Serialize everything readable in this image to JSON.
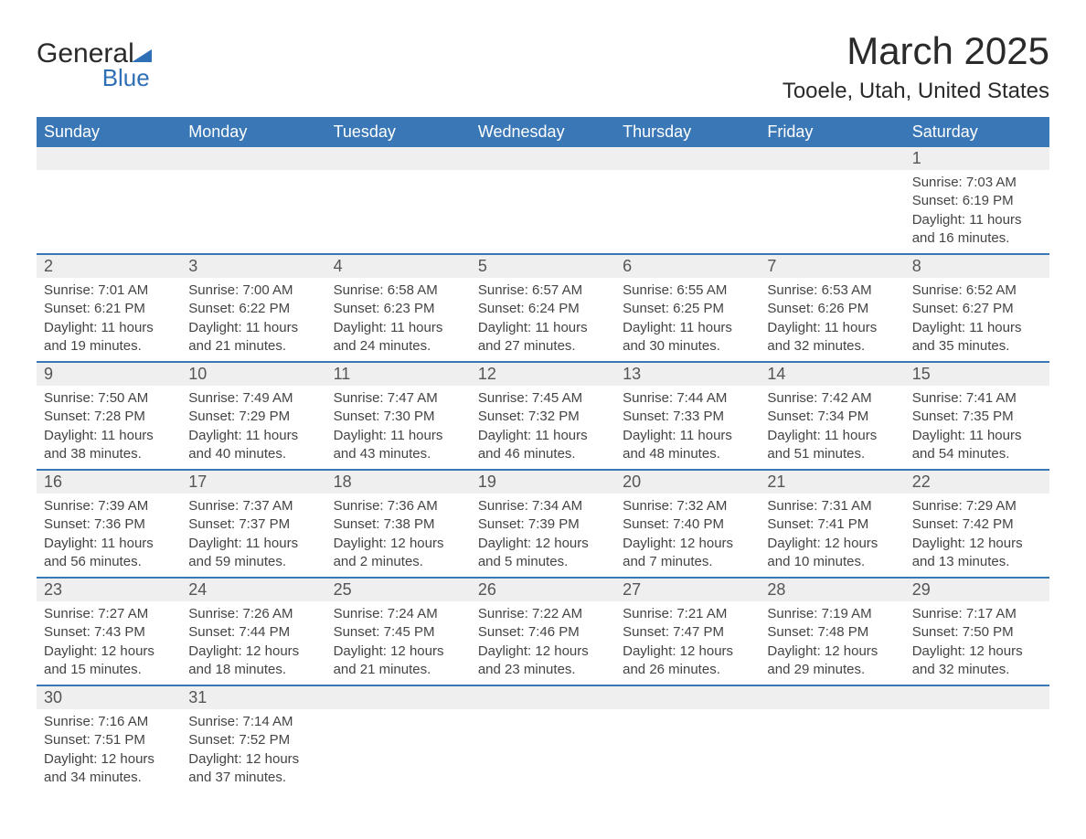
{
  "logo": {
    "line1": "General",
    "line2": "Blue"
  },
  "title": "March 2025",
  "location": "Tooele, Utah, United States",
  "colors": {
    "header_bg": "#3a77b7",
    "header_text": "#ffffff",
    "daynum_bg": "#efefef",
    "row_divider": "#3a77b7"
  },
  "weekdays": [
    "Sunday",
    "Monday",
    "Tuesday",
    "Wednesday",
    "Thursday",
    "Friday",
    "Saturday"
  ],
  "weeks": [
    {
      "days": [
        null,
        null,
        null,
        null,
        null,
        null,
        {
          "n": "1",
          "sunrise": "7:03 AM",
          "sunset": "6:19 PM",
          "daylight": "11 hours and 16 minutes."
        }
      ]
    },
    {
      "days": [
        {
          "n": "2",
          "sunrise": "7:01 AM",
          "sunset": "6:21 PM",
          "daylight": "11 hours and 19 minutes."
        },
        {
          "n": "3",
          "sunrise": "7:00 AM",
          "sunset": "6:22 PM",
          "daylight": "11 hours and 21 minutes."
        },
        {
          "n": "4",
          "sunrise": "6:58 AM",
          "sunset": "6:23 PM",
          "daylight": "11 hours and 24 minutes."
        },
        {
          "n": "5",
          "sunrise": "6:57 AM",
          "sunset": "6:24 PM",
          "daylight": "11 hours and 27 minutes."
        },
        {
          "n": "6",
          "sunrise": "6:55 AM",
          "sunset": "6:25 PM",
          "daylight": "11 hours and 30 minutes."
        },
        {
          "n": "7",
          "sunrise": "6:53 AM",
          "sunset": "6:26 PM",
          "daylight": "11 hours and 32 minutes."
        },
        {
          "n": "8",
          "sunrise": "6:52 AM",
          "sunset": "6:27 PM",
          "daylight": "11 hours and 35 minutes."
        }
      ]
    },
    {
      "days": [
        {
          "n": "9",
          "sunrise": "7:50 AM",
          "sunset": "7:28 PM",
          "daylight": "11 hours and 38 minutes."
        },
        {
          "n": "10",
          "sunrise": "7:49 AM",
          "sunset": "7:29 PM",
          "daylight": "11 hours and 40 minutes."
        },
        {
          "n": "11",
          "sunrise": "7:47 AM",
          "sunset": "7:30 PM",
          "daylight": "11 hours and 43 minutes."
        },
        {
          "n": "12",
          "sunrise": "7:45 AM",
          "sunset": "7:32 PM",
          "daylight": "11 hours and 46 minutes."
        },
        {
          "n": "13",
          "sunrise": "7:44 AM",
          "sunset": "7:33 PM",
          "daylight": "11 hours and 48 minutes."
        },
        {
          "n": "14",
          "sunrise": "7:42 AM",
          "sunset": "7:34 PM",
          "daylight": "11 hours and 51 minutes."
        },
        {
          "n": "15",
          "sunrise": "7:41 AM",
          "sunset": "7:35 PM",
          "daylight": "11 hours and 54 minutes."
        }
      ]
    },
    {
      "days": [
        {
          "n": "16",
          "sunrise": "7:39 AM",
          "sunset": "7:36 PM",
          "daylight": "11 hours and 56 minutes."
        },
        {
          "n": "17",
          "sunrise": "7:37 AM",
          "sunset": "7:37 PM",
          "daylight": "11 hours and 59 minutes."
        },
        {
          "n": "18",
          "sunrise": "7:36 AM",
          "sunset": "7:38 PM",
          "daylight": "12 hours and 2 minutes."
        },
        {
          "n": "19",
          "sunrise": "7:34 AM",
          "sunset": "7:39 PM",
          "daylight": "12 hours and 5 minutes."
        },
        {
          "n": "20",
          "sunrise": "7:32 AM",
          "sunset": "7:40 PM",
          "daylight": "12 hours and 7 minutes."
        },
        {
          "n": "21",
          "sunrise": "7:31 AM",
          "sunset": "7:41 PM",
          "daylight": "12 hours and 10 minutes."
        },
        {
          "n": "22",
          "sunrise": "7:29 AM",
          "sunset": "7:42 PM",
          "daylight": "12 hours and 13 minutes."
        }
      ]
    },
    {
      "days": [
        {
          "n": "23",
          "sunrise": "7:27 AM",
          "sunset": "7:43 PM",
          "daylight": "12 hours and 15 minutes."
        },
        {
          "n": "24",
          "sunrise": "7:26 AM",
          "sunset": "7:44 PM",
          "daylight": "12 hours and 18 minutes."
        },
        {
          "n": "25",
          "sunrise": "7:24 AM",
          "sunset": "7:45 PM",
          "daylight": "12 hours and 21 minutes."
        },
        {
          "n": "26",
          "sunrise": "7:22 AM",
          "sunset": "7:46 PM",
          "daylight": "12 hours and 23 minutes."
        },
        {
          "n": "27",
          "sunrise": "7:21 AM",
          "sunset": "7:47 PM",
          "daylight": "12 hours and 26 minutes."
        },
        {
          "n": "28",
          "sunrise": "7:19 AM",
          "sunset": "7:48 PM",
          "daylight": "12 hours and 29 minutes."
        },
        {
          "n": "29",
          "sunrise": "7:17 AM",
          "sunset": "7:50 PM",
          "daylight": "12 hours and 32 minutes."
        }
      ]
    },
    {
      "days": [
        {
          "n": "30",
          "sunrise": "7:16 AM",
          "sunset": "7:51 PM",
          "daylight": "12 hours and 34 minutes."
        },
        {
          "n": "31",
          "sunrise": "7:14 AM",
          "sunset": "7:52 PM",
          "daylight": "12 hours and 37 minutes."
        },
        null,
        null,
        null,
        null,
        null
      ]
    }
  ],
  "labels": {
    "sunrise": "Sunrise: ",
    "sunset": "Sunset: ",
    "daylight": "Daylight: "
  }
}
